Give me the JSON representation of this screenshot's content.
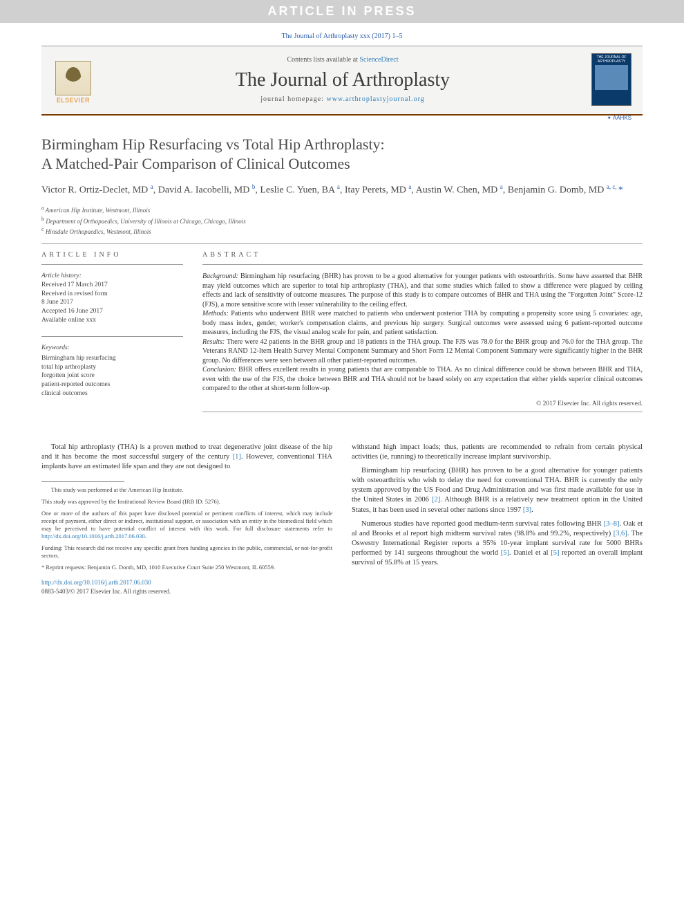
{
  "banner": "ARTICLE IN PRESS",
  "citation": "The Journal of Arthroplasty xxx (2017) 1–5",
  "header": {
    "contents_prefix": "Contents lists available at ",
    "contents_link": "ScienceDirect",
    "journal_name": "The Journal of Arthroplasty",
    "homepage_prefix": "journal homepage: ",
    "homepage_url": "www.arthroplastyjournal.org",
    "elsevier": "ELSEVIER",
    "cover_title": "THE JOURNAL OF ARTHROPLASTY",
    "aahks": "AAHKS"
  },
  "title_line1": "Birmingham Hip Resurfacing vs Total Hip Arthroplasty:",
  "title_line2": "A Matched-Pair Comparison of Clinical Outcomes",
  "authors_html": "Victor R. Ortiz-Declet, MD <sup>a</sup>, David A. Iacobelli, MD <sup>b</sup>, Leslie C. Yuen, BA <sup>a</sup>, Itay Perets, MD <sup>a</sup>, Austin W. Chen, MD <sup>a</sup>, Benjamin G. Domb, MD <sup>a, c, </sup><span class=\"star\">*</span>",
  "affiliations": {
    "a": "American Hip Institute, Westmont, Illinois",
    "b": "Department of Orthopaedics, University of Illinois at Chicago, Chicago, Illinois",
    "c": "Hinsdale Orthopaedics, Westmont, Illinois"
  },
  "info": {
    "label": "article info",
    "history_head": "Article history:",
    "received": "Received 17 March 2017",
    "revised": "Received in revised form",
    "revised_date": "8 June 2017",
    "accepted": "Accepted 16 June 2017",
    "online": "Available online xxx",
    "kw_head": "Keywords:",
    "kw": [
      "Birmingham hip resurfacing",
      "total hip arthroplasty",
      "forgotten joint score",
      "patient-reported outcomes",
      "clinical outcomes"
    ]
  },
  "abstract": {
    "label": "abstract",
    "background_head": "Background:",
    "background": "Birmingham hip resurfacing (BHR) has proven to be a good alternative for younger patients with osteoarthritis. Some have asserted that BHR may yield outcomes which are superior to total hip arthroplasty (THA), and that some studies which failed to show a difference were plagued by ceiling effects and lack of sensitivity of outcome measures. The purpose of this study is to compare outcomes of BHR and THA using the \"Forgotten Joint\" Score-12 (FJS), a more sensitive score with lesser vulnerability to the ceiling effect.",
    "methods_head": "Methods:",
    "methods": "Patients who underwent BHR were matched to patients who underwent posterior THA by computing a propensity score using 5 covariates: age, body mass index, gender, worker's compensation claims, and previous hip surgery. Surgical outcomes were assessed using 6 patient-reported outcome measures, including the FJS, the visual analog scale for pain, and patient satisfaction.",
    "results_head": "Results:",
    "results": "There were 42 patients in the BHR group and 18 patients in the THA group. The FJS was 78.0 for the BHR group and 76.0 for the THA group. The Veterans RAND 12-Item Health Survey Mental Component Summary and Short Form 12 Mental Component Summary were significantly higher in the BHR group. No differences were seen between all other patient-reported outcomes.",
    "conclusion_head": "Conclusion:",
    "conclusion": "BHR offers excellent results in young patients that are comparable to THA. As no clinical difference could be shown between BHR and THA, even with the use of the FJS, the choice between BHR and THA should not be based solely on any expectation that either yields superior clinical outcomes compared to the other at short-term follow-up.",
    "copyright": "© 2017 Elsevier Inc. All rights reserved."
  },
  "body": {
    "p1": "Total hip arthroplasty (THA) is a proven method to treat degenerative joint disease of the hip and it has become the most successful surgery of the century [1]. However, conventional THA implants have an estimated life span and they are not designed to",
    "p2": "withstand high impact loads; thus, patients are recommended to refrain from certain physical activities (ie, running) to theoretically increase implant survivorship.",
    "p3": "Birmingham hip resurfacing (BHR) has proven to be a good alternative for younger patients with osteoarthritis who wish to delay the need for conventional THA. BHR is currently the only system approved by the US Food and Drug Administration and was first made available for use in the United States in 2006 [2]. Although BHR is a relatively new treatment option in the United States, it has been used in several other nations since 1997 [3].",
    "p4": "Numerous studies have reported good medium-term survival rates following BHR [3–8]. Oak et al and Brooks et al report high midterm survival rates (98.8% and 99.2%, respectively) [3,6]. The Oswestry International Register reports a 95% 10-year implant survival rate for 5000 BHRs performed by 141 surgeons throughout the world [5]. Daniel et al [5] reported an overall implant survival of 95.8% at 15 years."
  },
  "footnotes": {
    "n1": "This study was performed at the American Hip Institute.",
    "n2": "This study was approved by the Institutional Review Board (IRB ID: 5276).",
    "n3_pre": "One or more of the authors of this paper have disclosed potential or pertinent conflicts of interest, which may include receipt of payment, either direct or indirect, institutional support, or association with an entity in the biomedical field which may be perceived to have potential conflict of interest with this work. For full disclosure statements refer to ",
    "n3_link": "http://dx.doi.org/10.1016/j.arth.2017.06.030",
    "n3_post": ".",
    "n4": "Funding: This research did not receive any specific grant from funding agencies in the public, commercial, or not-for-profit sectors.",
    "n5": "* Reprint requests: Benjamin G. Domb, MD, 1010 Executive Court Suite 250 Westmont, IL 60559."
  },
  "doi": {
    "url": "http://dx.doi.org/10.1016/j.arth.2017.06.030",
    "issn_line": "0883-5403/© 2017 Elsevier Inc. All rights reserved."
  },
  "colors": {
    "banner_bg": "#d0d0d0",
    "banner_text": "#ffffff",
    "link": "#2a7ab8",
    "accent_brown": "#7a3a00",
    "elsevier_orange": "#e67a00",
    "cover_bg": "#0a3a6a"
  }
}
